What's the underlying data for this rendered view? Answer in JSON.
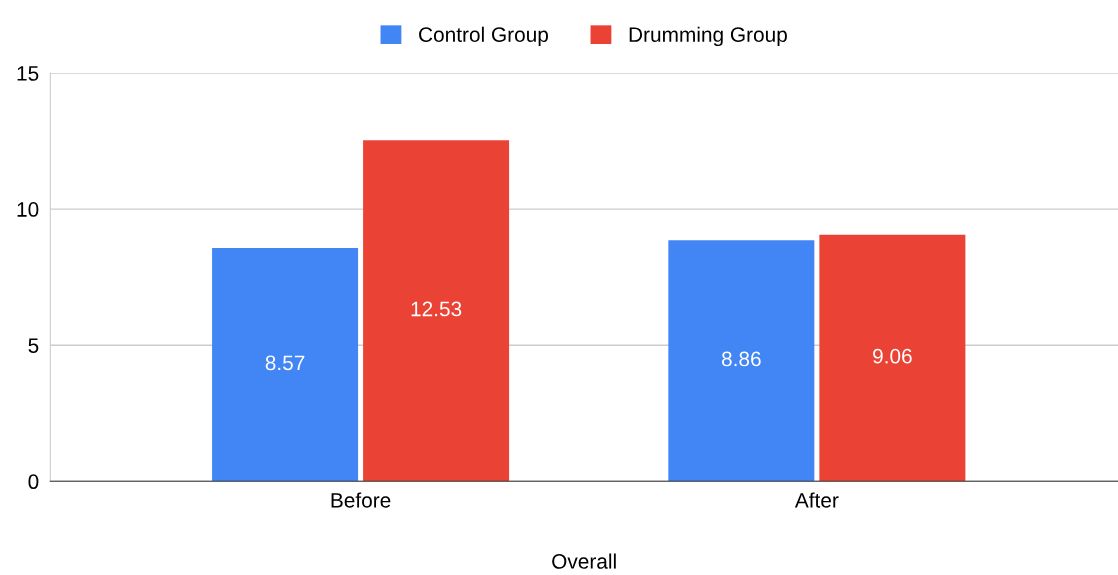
{
  "chart_data": {
    "type": "bar",
    "xlabel": "Overall",
    "categories": [
      "Before",
      "After"
    ],
    "series": [
      {
        "name": "Control Group",
        "color": "#4285f4",
        "values": [
          8.57,
          8.86
        ]
      },
      {
        "name": "Drumming Group",
        "color": "#ea4335",
        "values": [
          12.53,
          9.06
        ]
      }
    ],
    "ylim": [
      0,
      15
    ],
    "yticks": [
      0,
      5,
      10,
      15
    ],
    "grid": "y",
    "legend": "top",
    "data_labels": true
  }
}
